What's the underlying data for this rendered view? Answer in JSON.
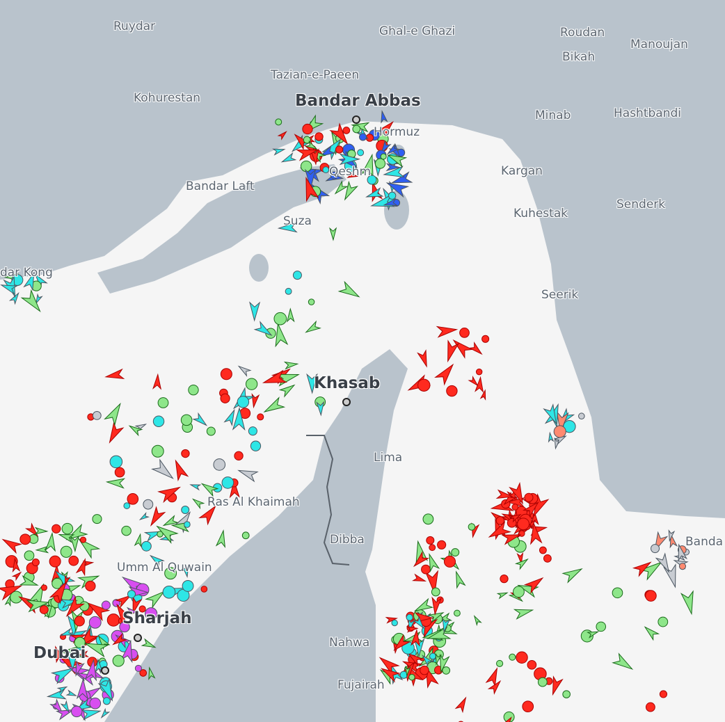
{
  "map": {
    "colors": {
      "land": "#b9c3cc",
      "water": "#f5f5f5",
      "border": "#59616a",
      "tanker": "#ff2a1f",
      "cargo": "#8ee68a",
      "passenger": "#2f5ff2",
      "tug": "#2ee6e6",
      "pleasure": "#d84ef0",
      "fishing": "#ff8a70",
      "unknown": "#c8ccd2"
    },
    "places": [
      {
        "name": "Ruydar"
      },
      {
        "name": "Ghal-e Ghazi"
      },
      {
        "name": "Roudan"
      },
      {
        "name": "Manoujan"
      },
      {
        "name": "Bikah"
      },
      {
        "name": "Tazian-e-Paeen"
      },
      {
        "name": "Kohurestan"
      },
      {
        "name": "Bandar Abbas"
      },
      {
        "name": "Minab"
      },
      {
        "name": "Hashtbandi"
      },
      {
        "name": "Hormuz"
      },
      {
        "name": "Qeshm"
      },
      {
        "name": "Kargan"
      },
      {
        "name": "Bandar Laft"
      },
      {
        "name": "Senderk"
      },
      {
        "name": "Kuhestak"
      },
      {
        "name": "Suza"
      },
      {
        "name": "dar Kong"
      },
      {
        "name": "Seerik"
      },
      {
        "name": "Khasab"
      },
      {
        "name": "Lima"
      },
      {
        "name": "Ras Al Khaimah"
      },
      {
        "name": "Dibba"
      },
      {
        "name": "Banda"
      },
      {
        "name": "Umm Al Quwain"
      },
      {
        "name": "Sharjah"
      },
      {
        "name": "Dubai"
      },
      {
        "name": "Nahwa"
      },
      {
        "name": "Fujairah"
      }
    ]
  }
}
